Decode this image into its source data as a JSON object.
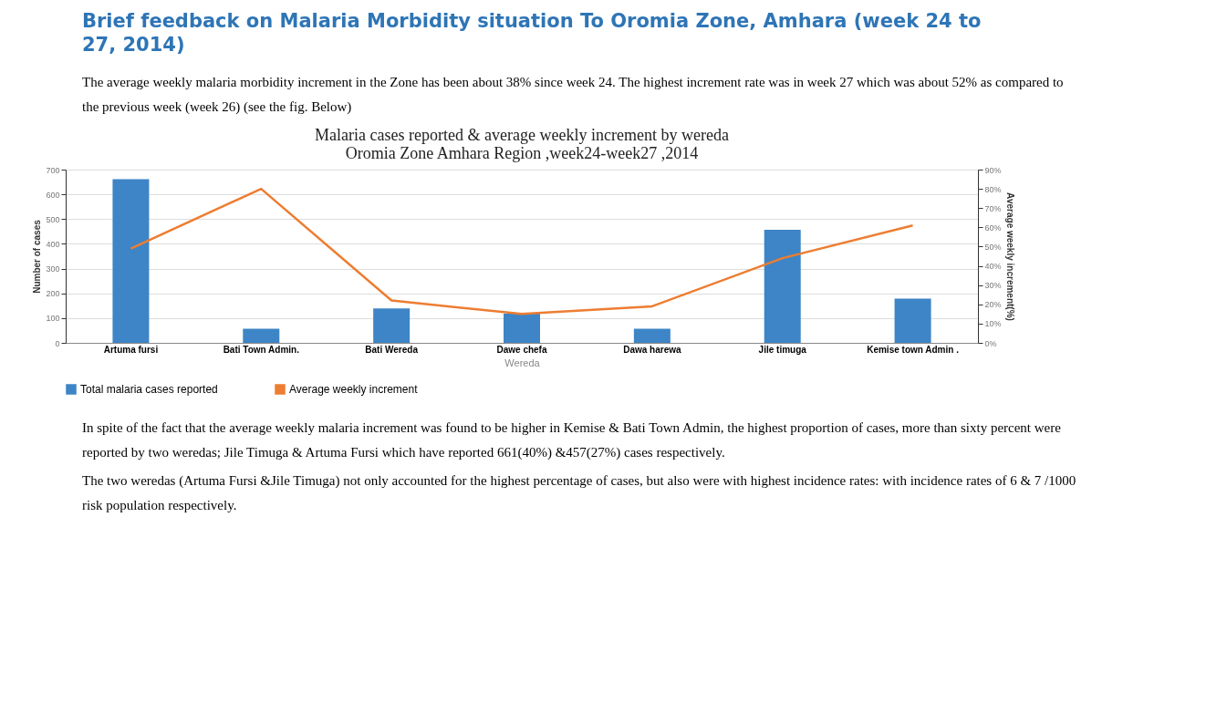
{
  "chart_data": {
    "type": "bar",
    "title": "Brief feedback on Malaria Morbidity situation To Oromia Zone, Amhara (week 24 to 27, 2014)",
    "subtitle": "Malaria cases reported & average weekly increment by wereda\nOromia Zone Amhara Region ,week24-week27 ,2014",
    "xlabel": "Wereda",
    "ylabel": "Number of cases",
    "y2label": "Average weekly increment(%)",
    "categories": [
      "Artuma fursi",
      "Bati Town Admin.",
      "Bati Wereda",
      "Dawe chefa",
      "Dawa harewa",
      "Jile timuga",
      "Kemise town Admin ."
    ],
    "series": [
      {
        "name": "Total malaria cases reported",
        "color": "#3d85c6",
        "values": [
          661,
          57,
          139,
          118,
          57,
          457,
          179
        ]
      },
      {
        "name": "Average weekly increment",
        "type": "line",
        "axis": "y2",
        "color": "#ed7d31",
        "values": [
          49,
          80,
          22,
          15,
          19,
          44,
          61
        ]
      }
    ],
    "ylim": [
      0,
      700
    ],
    "yticks": [
      0,
      100,
      200,
      300,
      400,
      500,
      600,
      700
    ],
    "y2lim": [
      0,
      90
    ],
    "y2ticks": [
      {
        "value": 0,
        "label": "0%"
      },
      {
        "value": 10,
        "label": "10%"
      },
      {
        "value": 20,
        "label": "20%"
      },
      {
        "value": 30,
        "label": "30%"
      },
      {
        "value": 40,
        "label": "40%"
      },
      {
        "value": 50,
        "label": "50%"
      },
      {
        "value": 60,
        "label": "60%"
      },
      {
        "value": 70,
        "label": "70%"
      },
      {
        "value": 80,
        "label": "80%"
      },
      {
        "value": 90,
        "label": "90%"
      }
    ],
    "grid": "y",
    "legend": "bottom",
    "annotations": [
      "The average weekly malaria morbidity increment in the Zone has been about 38% since week 24. The highest increment rate was in week 27 which was about 52%  as compared to the previous week (week 26)  (see the fig. Below)",
      "In spite of the fact that the average weekly malaria increment was found to be higher in Kemise & Bati Town Admin, the highest proportion of cases, more than sixty percent were reported by two weredas; Jile Timuga & Artuma Fursi which have reported 661(40%) &457(27%) cases respectively.",
      "The two weredas (Artuma Fursi &Jile Timuga) not only accounted for the highest percentage of cases, but also were with highest incidence rates: with incidence rates of 6 & 7 /1000 risk population respectively."
    ]
  }
}
